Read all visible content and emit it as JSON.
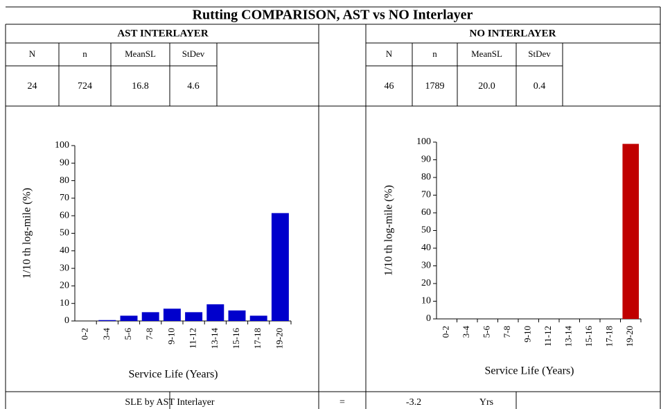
{
  "title": "Rutting COMPARISON, AST vs NO Interlayer",
  "panels": [
    {
      "heading": "AST INTERLAYER",
      "columns": [
        "N",
        "n",
        "MeanSL",
        "StDev"
      ],
      "values": [
        "24",
        "724",
        "16.8",
        "4.6"
      ]
    },
    {
      "heading": "NO INTERLAYER",
      "columns": [
        "N",
        "n",
        "MeanSL",
        "StDev"
      ],
      "values": [
        "46",
        "1789",
        "20.0",
        "0.4"
      ]
    }
  ],
  "footer": {
    "label": "SLE by AST Interlayer",
    "equals": "=",
    "value": "-3.2",
    "unit": "Yrs"
  },
  "chart_data": [
    {
      "type": "bar",
      "ylabel": "1/10 th log-mile (%)",
      "xlabel": "Service Life (Years)",
      "categories": [
        "0-2",
        "3-4",
        "5-6",
        "7-8",
        "9-10",
        "11-12",
        "13-14",
        "15-16",
        "17-18",
        "19-20"
      ],
      "values": [
        0,
        0.5,
        3,
        5,
        7,
        5,
        9.5,
        6,
        3,
        61.5
      ],
      "color": "#0000cc",
      "ylim": [
        0,
        100
      ],
      "yticks": [
        0,
        10,
        20,
        30,
        40,
        50,
        60,
        70,
        80,
        90,
        100
      ]
    },
    {
      "type": "bar",
      "ylabel": "1/10 th log-mile (%)",
      "xlabel": "Service Life (Years)",
      "categories": [
        "0-2",
        "3-4",
        "5-6",
        "7-8",
        "9-10",
        "11-12",
        "13-14",
        "15-16",
        "17-18",
        "19-20"
      ],
      "values": [
        0,
        0,
        0,
        0,
        0,
        0,
        0,
        0,
        0,
        99
      ],
      "color": "#c00000",
      "ylim": [
        0,
        100
      ],
      "yticks": [
        0,
        10,
        20,
        30,
        40,
        50,
        60,
        70,
        80,
        90,
        100
      ]
    }
  ]
}
